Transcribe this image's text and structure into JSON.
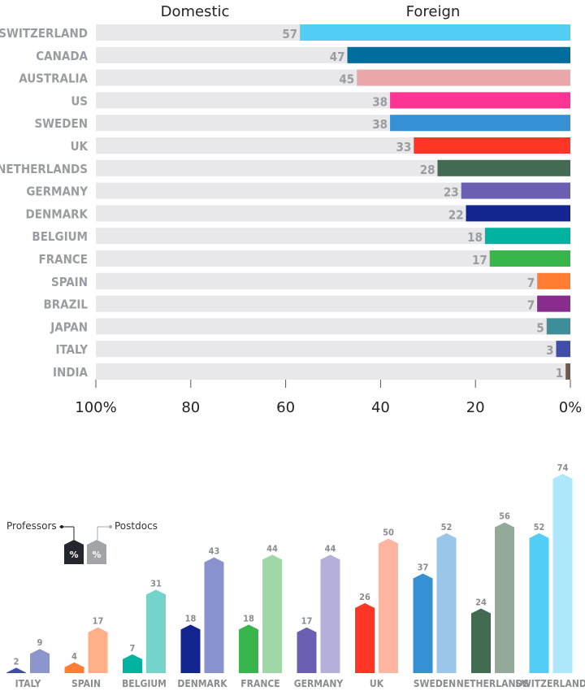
{
  "chart_data": [
    {
      "type": "bar",
      "orientation": "horizontal-stacked-percent",
      "header_left": "Domestic",
      "header_right": "Foreign",
      "background_color": "#e8e8ea",
      "categories": [
        "SWITZERLAND",
        "CANADA",
        "AUSTRALIA",
        "US",
        "SWEDEN",
        "UK",
        "NETHERLANDS",
        "GERMANY",
        "DENMARK",
        "BELGIUM",
        "FRANCE",
        "SPAIN",
        "BRAZIL",
        "JAPAN",
        "ITALY",
        "INDIA"
      ],
      "values": [
        57,
        47,
        45,
        38,
        38,
        33,
        28,
        23,
        22,
        18,
        17,
        7,
        7,
        5,
        3,
        1
      ],
      "colors": [
        "#52cdf6",
        "#006d9c",
        "#e9a7ab",
        "#fc3594",
        "#3591d3",
        "#ff3525",
        "#426b52",
        "#6a5fb3",
        "#132590",
        "#00b2a0",
        "#38b64b",
        "#ff7e33",
        "#882c8e",
        "#3d8e99",
        "#3f4fa9",
        "#6f5a4e"
      ],
      "ticks": [
        "100%",
        "80",
        "60",
        "40",
        "20",
        "0%"
      ],
      "xlim": [
        100,
        0
      ]
    },
    {
      "type": "bar",
      "orientation": "vertical-grouped",
      "legend": {
        "professors": "Professors",
        "postdocs": "Postdocs",
        "symbol": "%"
      },
      "categories": [
        "ITALY",
        "SPAIN",
        "BELGIUM",
        "DENMARK",
        "FRANCE",
        "GERMANY",
        "UK",
        "SWEDEN",
        "NETHERLANDS",
        "SWITZERLAND"
      ],
      "series": [
        {
          "name": "Professors",
          "values": [
            2,
            4,
            7,
            18,
            18,
            17,
            26,
            37,
            24,
            52
          ],
          "colors": [
            "#3f4fa9",
            "#ff7e33",
            "#00b2a0",
            "#132590",
            "#38b64b",
            "#6a5fb3",
            "#ff3525",
            "#3591d3",
            "#426b52",
            "#52cdf6"
          ]
        },
        {
          "name": "Postdocs",
          "values": [
            9,
            17,
            31,
            43,
            44,
            44,
            50,
            52,
            56,
            74
          ],
          "colors": [
            "#8c95cc",
            "#ffb088",
            "#74d4cb",
            "#8992cc",
            "#9fd8a6",
            "#b5b0d9",
            "#ffb5a0",
            "#9ac6e9",
            "#94a99a",
            "#aee6fb"
          ]
        }
      ],
      "ylim": [
        0,
        74
      ]
    }
  ]
}
